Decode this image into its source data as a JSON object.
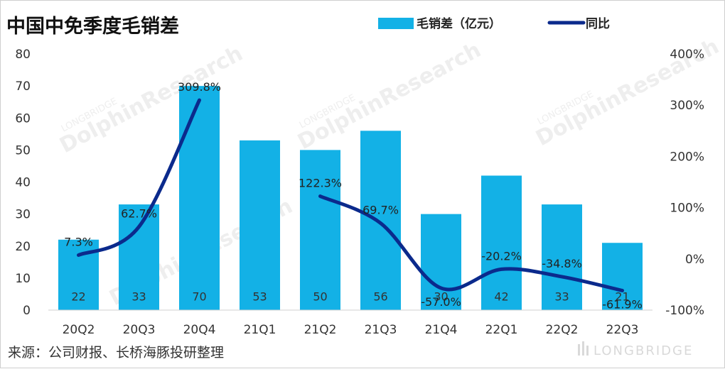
{
  "title": "中国中免季度毛销差",
  "source": "来源：公司财报、长桥海豚投研整理",
  "watermark": {
    "main": "DolphinResearch",
    "sub": "LONGBRIDGE",
    "brand": "LONGBRIDGE"
  },
  "colors": {
    "bar": "#13b1e6",
    "line": "#0b2a8c",
    "grid": "#d9d9d9",
    "watermark": "#eeeeee"
  },
  "chart_data": {
    "type": "bar",
    "title": "中国中免季度毛销差",
    "categories": [
      "20Q2",
      "20Q3",
      "20Q4",
      "21Q1",
      "21Q2",
      "21Q3",
      "21Q4",
      "22Q1",
      "22Q2",
      "22Q3"
    ],
    "series": [
      {
        "name": "毛销差（亿元）",
        "type": "bar",
        "axis": "left",
        "values": [
          22,
          33,
          70,
          53,
          50,
          56,
          30,
          42,
          33,
          21
        ],
        "labels": [
          "22",
          "33",
          "70",
          "53",
          "50",
          "56",
          "30",
          "42",
          "33",
          "21"
        ]
      },
      {
        "name": "同比",
        "type": "line",
        "axis": "right",
        "segments": [
          [
            0,
            1,
            2
          ],
          [
            4,
            5,
            6,
            7,
            8,
            9
          ]
        ],
        "values": [
          7.3,
          62.7,
          309.8,
          null,
          122.3,
          69.7,
          -57.0,
          -20.2,
          -34.8,
          -61.9
        ],
        "labels": [
          "7.3%",
          "62.7%",
          "309.8%",
          "",
          "122.3%",
          "69.7%",
          "-57.0%",
          "-20.2%",
          "-34.8%",
          "-61.9%"
        ]
      }
    ],
    "y_left": {
      "min": 0,
      "max": 80,
      "ticks": [
        "0",
        "10",
        "20",
        "30",
        "40",
        "50",
        "60",
        "70",
        "80"
      ]
    },
    "y_right": {
      "min": -100,
      "max": 400,
      "ticks": [
        "-100%",
        "0%",
        "100%",
        "200%",
        "300%",
        "400%"
      ]
    },
    "legend_position": "top-right",
    "grid": false
  }
}
